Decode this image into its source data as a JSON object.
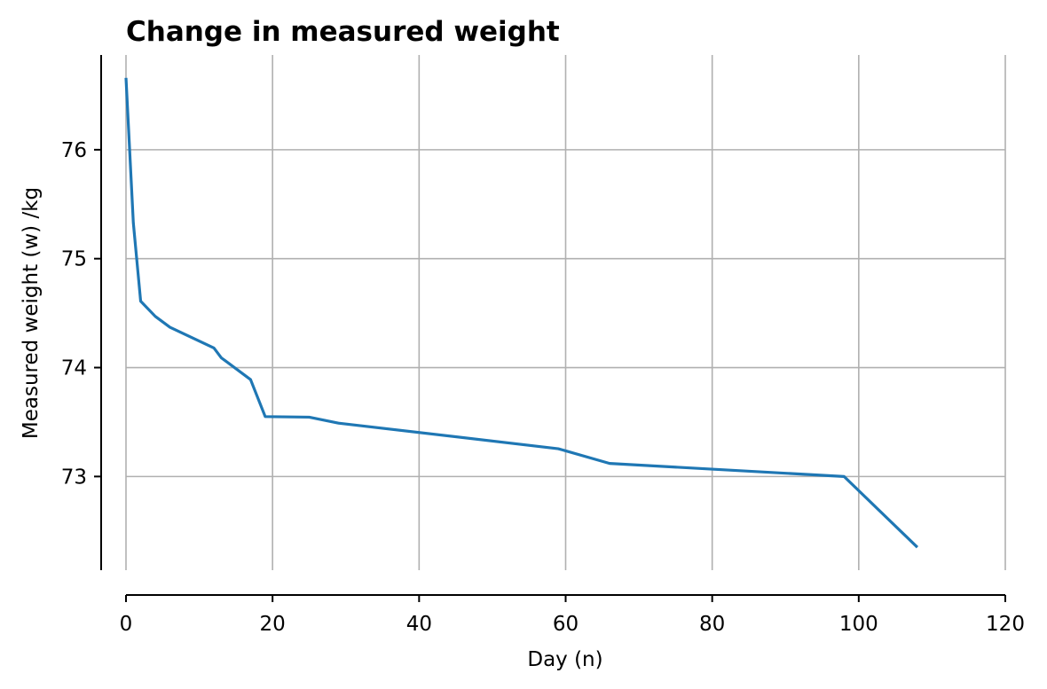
{
  "chart_data": {
    "type": "line",
    "title": "Change in measured weight",
    "xlabel": "Day (n)",
    "ylabel": "Measured weight (w) /kg",
    "xlim": [
      0,
      120
    ],
    "ylim": [
      72.14,
      76.87
    ],
    "xticks": [
      0,
      20,
      40,
      60,
      80,
      100,
      120
    ],
    "yticks": [
      73,
      74,
      75,
      76
    ],
    "grid": true,
    "series": [
      {
        "color": "#1f77b4",
        "x": [
          0,
          1,
          2,
          4,
          6,
          12,
          13,
          17,
          19,
          25,
          29,
          59,
          66,
          98,
          108
        ],
        "y": [
          76.66,
          75.33,
          74.61,
          74.47,
          74.37,
          74.18,
          74.09,
          73.89,
          73.55,
          73.545,
          73.49,
          73.255,
          73.12,
          73.0,
          72.35
        ]
      }
    ]
  }
}
